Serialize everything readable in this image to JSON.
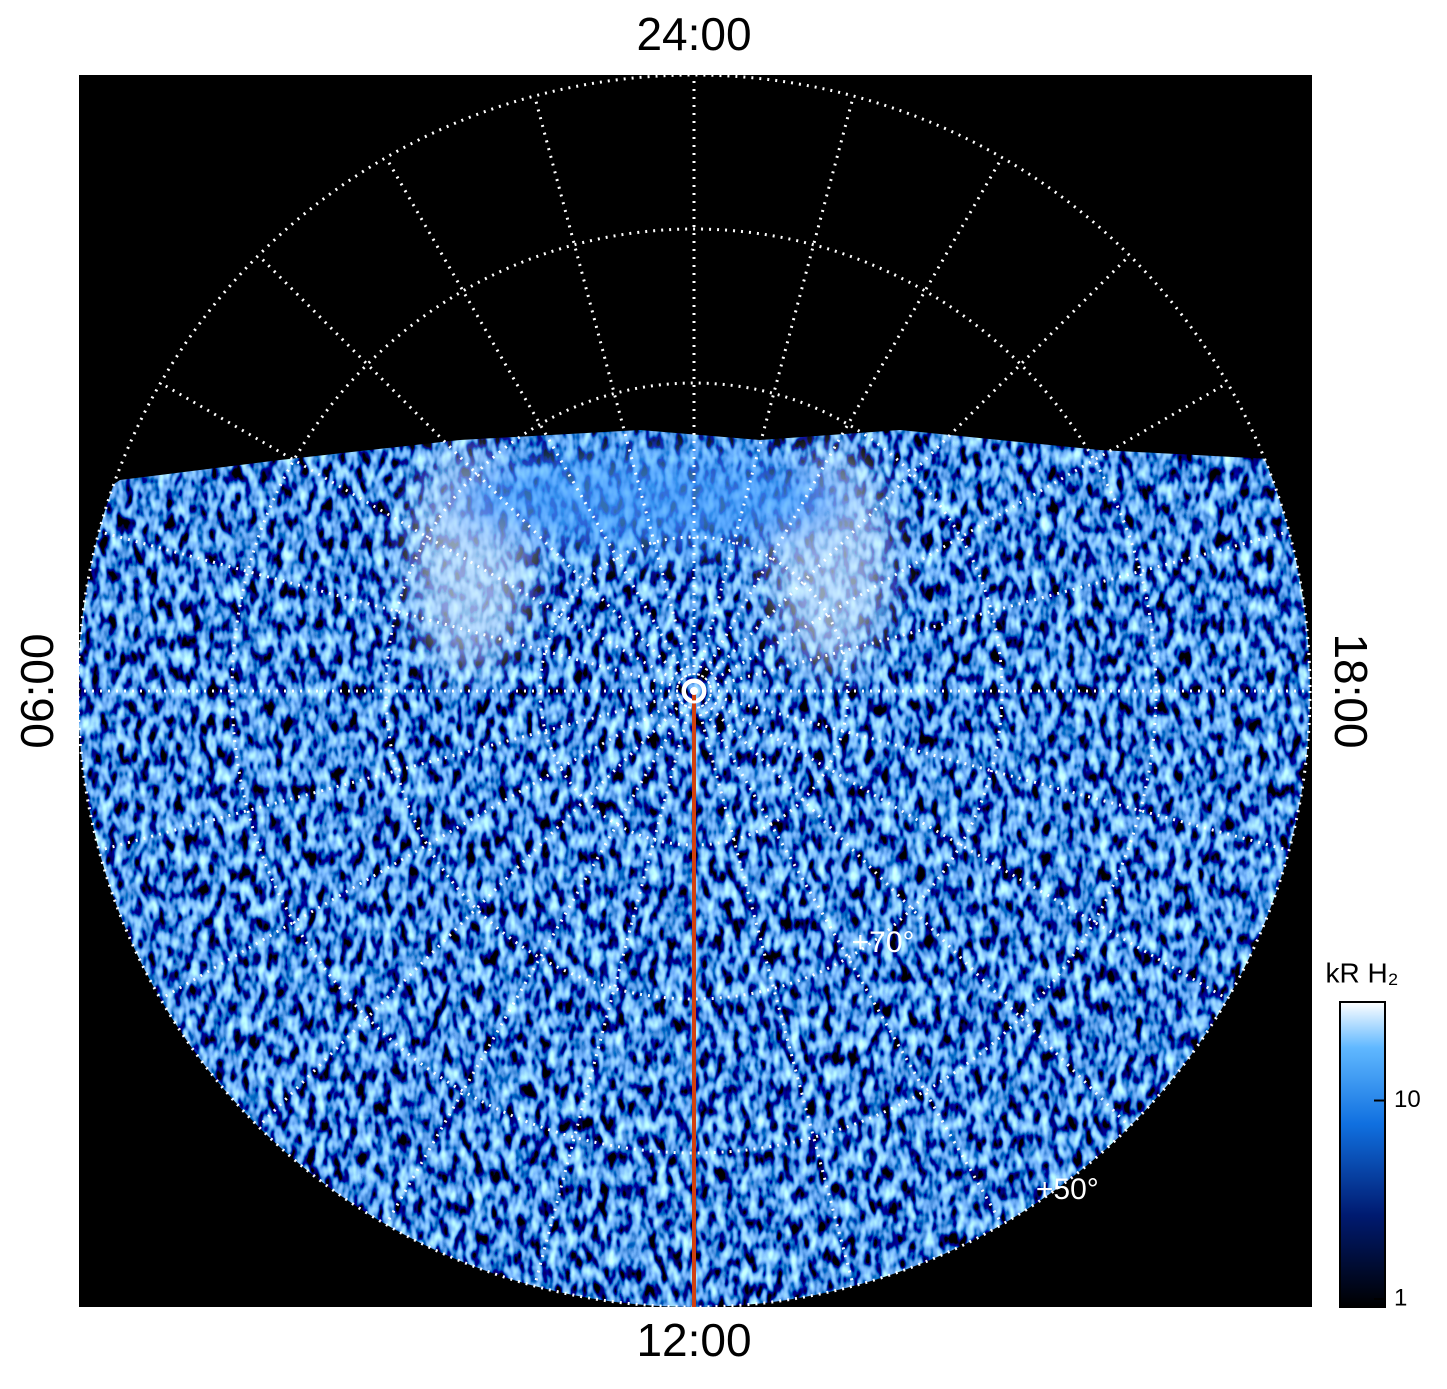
{
  "chart_data": {
    "type": "polar-map",
    "thetaticks": [
      {
        "value": 24,
        "label": "24:00"
      },
      {
        "value": 6,
        "label": "06:00"
      },
      {
        "value": 12,
        "label": "12:00"
      },
      {
        "value": 18,
        "label": "18:00"
      }
    ],
    "rlim": [
      90,
      50
    ],
    "rticks": [
      80,
      70,
      60,
      50
    ],
    "rtick_labels": [
      {
        "value": 70,
        "label": "+70°"
      },
      {
        "value": 50,
        "label": "+50°"
      }
    ],
    "colorbar": {
      "title": "kR H₂",
      "log": true,
      "clim": [
        1,
        30
      ],
      "ticks": [
        1,
        10
      ]
    }
  }
}
